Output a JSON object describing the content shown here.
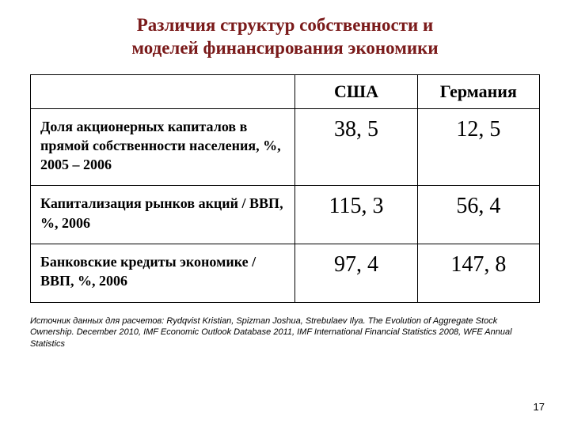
{
  "title_line1": "Различия структур собственности и",
  "title_line2": "моделей финансирования экономики",
  "title_color": "#7a1a1a",
  "table": {
    "columns": [
      "",
      "США",
      "Германия"
    ],
    "rows": [
      {
        "label": "Доля акционерных капиталов в прямой собственности населения, %, 2005 – 2006",
        "usa": "38, 5",
        "germany": "12, 5"
      },
      {
        "label": "Капитализация рынков акций / ВВП, %, 2006",
        "usa": "115, 3",
        "germany": "56, 4"
      },
      {
        "label": "Банковские кредиты экономике / ВВП, %, 2006",
        "usa": "97, 4",
        "germany": "147, 8"
      }
    ],
    "border_color": "#000000",
    "header_fontsize": 22,
    "label_fontsize": 18,
    "value_fontsize": 28
  },
  "source": "Источник данных для расчетов: Rydqvist Kristian, Spizman Joshua, Strebulaev Ilya. The Evolution of Aggregate Stock Ownership. December 2010, IMF Economic Outlook Database 2011, IMF International Financial Statistics 2008, WFE Annual Statistics",
  "page_number": "17",
  "background_color": "#ffffff"
}
